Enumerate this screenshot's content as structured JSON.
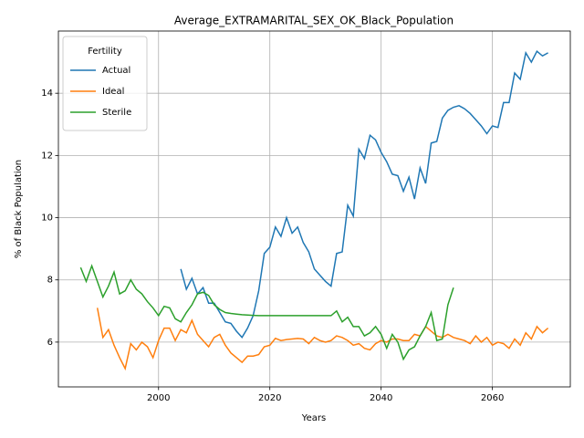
{
  "chart_data": {
    "type": "line",
    "title": "Average_EXTRAMARITAL_SEX_OK_Black_Population",
    "xlabel": "Years",
    "ylabel": "% of Black Population",
    "x": [
      1986,
      1987,
      1988,
      1989,
      1990,
      1991,
      1992,
      1993,
      1994,
      1995,
      1996,
      1997,
      1998,
      1999,
      2000,
      2001,
      2002,
      2003,
      2004,
      2005,
      2006,
      2007,
      2008,
      2009,
      2010,
      2011,
      2012,
      2013,
      2014,
      2015,
      2016,
      2017,
      2018,
      2019,
      2020,
      2021,
      2022,
      2023,
      2024,
      2025,
      2026,
      2027,
      2028,
      2029,
      2030,
      2031,
      2032,
      2033,
      2034,
      2035,
      2036,
      2037,
      2038,
      2039,
      2040,
      2041,
      2042,
      2043,
      2044,
      2045,
      2046,
      2047,
      2048,
      2049,
      2050,
      2051,
      2052,
      2053,
      2054,
      2055,
      2056,
      2057,
      2058,
      2059,
      2060,
      2061,
      2062,
      2063,
      2064,
      2065,
      2066,
      2067,
      2068,
      2069,
      2070
    ],
    "series": [
      {
        "name": "Actual",
        "color": "#1f77b4",
        "values": [
          null,
          null,
          null,
          null,
          null,
          null,
          null,
          null,
          null,
          null,
          null,
          null,
          null,
          null,
          null,
          null,
          null,
          null,
          8.35,
          7.7,
          8.05,
          7.55,
          7.75,
          7.25,
          7.25,
          6.95,
          6.65,
          6.6,
          6.35,
          6.15,
          6.45,
          6.85,
          7.65,
          8.85,
          9.05,
          9.7,
          9.4,
          10.0,
          9.5,
          9.7,
          9.2,
          8.9,
          8.35,
          8.15,
          7.95,
          7.8,
          8.85,
          8.9,
          10.4,
          10.05,
          12.2,
          11.9,
          12.65,
          12.5,
          12.1,
          11.8,
          11.4,
          11.35,
          10.85,
          11.3,
          10.6,
          11.6,
          11.1,
          12.4,
          12.45,
          13.2,
          13.45,
          13.55,
          13.6,
          13.5,
          13.35,
          13.15,
          12.95,
          12.7,
          12.95,
          12.9,
          13.7,
          13.7,
          14.65,
          14.45,
          15.3,
          15.0,
          15.35,
          15.2,
          15.3
        ]
      },
      {
        "name": "Ideal",
        "color": "#ff7f0e",
        "values": [
          null,
          null,
          null,
          7.1,
          6.15,
          6.4,
          5.9,
          5.5,
          5.15,
          5.95,
          5.75,
          6.0,
          5.85,
          5.5,
          6.05,
          6.45,
          6.45,
          6.05,
          6.4,
          6.3,
          6.7,
          6.25,
          6.05,
          5.85,
          6.15,
          6.25,
          5.9,
          5.65,
          5.5,
          5.35,
          5.55,
          5.55,
          5.6,
          5.85,
          5.9,
          6.12,
          6.05,
          6.08,
          6.1,
          6.12,
          6.1,
          5.95,
          6.15,
          6.05,
          6.0,
          6.05,
          6.2,
          6.15,
          6.05,
          5.9,
          5.95,
          5.8,
          5.75,
          5.95,
          6.05,
          6.0,
          6.1,
          6.1,
          6.05,
          6.05,
          6.25,
          6.2,
          6.5,
          6.35,
          6.2,
          6.15,
          6.25,
          6.15,
          6.1,
          6.05,
          5.95,
          6.2,
          6.0,
          6.15,
          5.9,
          6.0,
          5.95,
          5.8,
          6.1,
          5.9,
          6.3,
          6.1,
          6.5,
          6.3,
          6.45
        ]
      },
      {
        "name": "Sterile",
        "color": "#2ca02c",
        "values": [
          8.4,
          7.95,
          8.45,
          7.95,
          7.45,
          7.8,
          8.25,
          7.55,
          7.65,
          8.0,
          7.7,
          7.55,
          7.3,
          7.1,
          6.85,
          7.15,
          7.1,
          6.75,
          6.65,
          6.95,
          7.2,
          7.55,
          7.6,
          7.5,
          7.2,
          7.05,
          6.95,
          6.92,
          6.9,
          6.88,
          6.87,
          6.86,
          6.85,
          6.85,
          6.85,
          6.85,
          6.85,
          6.85,
          6.85,
          6.85,
          6.85,
          6.85,
          6.85,
          6.85,
          6.85,
          6.85,
          7.0,
          6.65,
          6.8,
          6.5,
          6.5,
          6.2,
          6.3,
          6.5,
          6.25,
          5.8,
          6.25,
          6.0,
          5.45,
          5.75,
          5.85,
          6.2,
          6.5,
          6.95,
          6.05,
          6.1,
          7.2,
          7.75,
          null,
          null,
          null,
          null,
          null,
          null,
          null,
          null,
          null,
          null,
          null,
          null,
          null,
          null,
          null,
          null,
          null
        ]
      }
    ],
    "xlim": [
      1982,
      2074
    ],
    "ylim": [
      4.56,
      16.0
    ],
    "xticks": [
      2000,
      2020,
      2040,
      2060
    ],
    "yticks": [
      6,
      8,
      10,
      12,
      14
    ],
    "grid": true,
    "legend_title": "Fertility",
    "legend_loc": "upper left"
  }
}
